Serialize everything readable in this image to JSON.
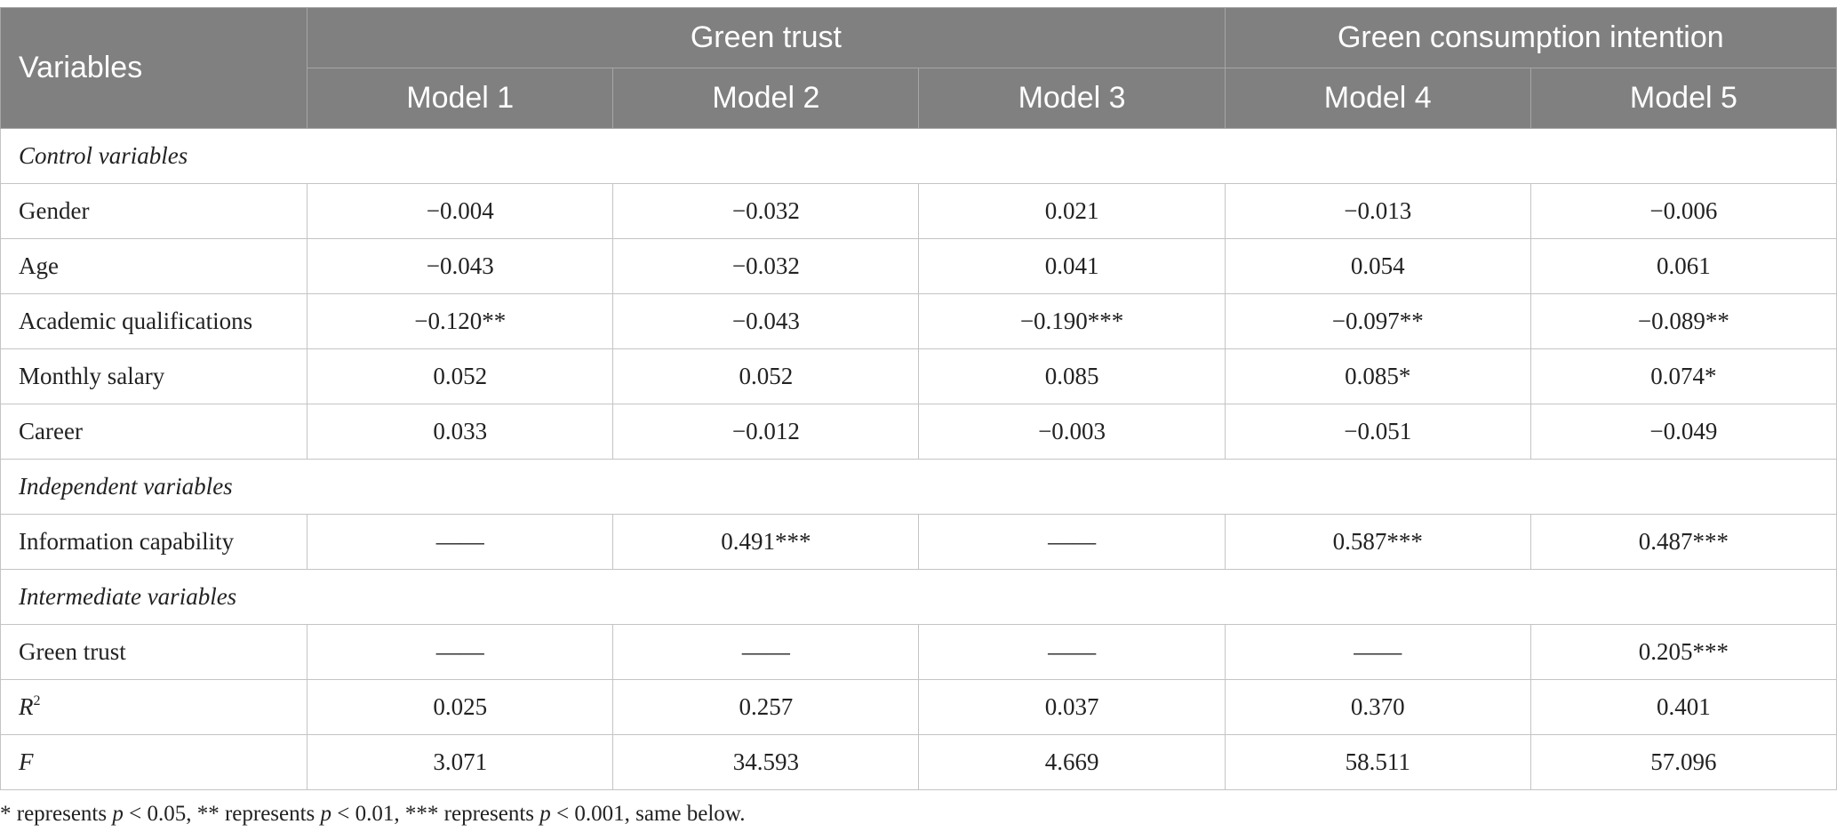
{
  "header": {
    "variables": "Variables",
    "group1": "Green trust",
    "group2": "Green consumption intention",
    "models": [
      "Model 1",
      "Model 2",
      "Model 3",
      "Model 4",
      "Model 5"
    ]
  },
  "rows": [
    {
      "type": "section",
      "label": "Control variables"
    },
    {
      "type": "data",
      "label": "Gender",
      "values": [
        "−0.004",
        "−0.032",
        "0.021",
        "−0.013",
        "−0.006"
      ]
    },
    {
      "type": "data",
      "label": "Age",
      "values": [
        "−0.043",
        "−0.032",
        "0.041",
        "0.054",
        "0.061"
      ]
    },
    {
      "type": "data",
      "label": "Academic qualifications",
      "values": [
        "−0.120**",
        "−0.043",
        "−0.190***",
        "−0.097**",
        "−0.089**"
      ]
    },
    {
      "type": "data",
      "label": "Monthly salary",
      "values": [
        "0.052",
        "0.052",
        "0.085",
        "0.085*",
        "0.074*"
      ]
    },
    {
      "type": "data",
      "label": "Career",
      "values": [
        "0.033",
        "−0.012",
        "−0.003",
        "−0.051",
        "−0.049"
      ]
    },
    {
      "type": "section",
      "label": "Independent variables"
    },
    {
      "type": "data",
      "label": "Information capability",
      "values": [
        "——",
        "0.491***",
        "——",
        "0.587***",
        "0.487***"
      ]
    },
    {
      "type": "section",
      "label": "Intermediate variables"
    },
    {
      "type": "data",
      "label": "Green trust",
      "values": [
        "——",
        "——",
        "——",
        "——",
        "0.205***"
      ]
    },
    {
      "type": "stat",
      "label": "R",
      "sup": "2",
      "values": [
        "0.025",
        "0.257",
        "0.037",
        "0.370",
        "0.401"
      ]
    },
    {
      "type": "stat",
      "label": "F",
      "values": [
        "3.071",
        "34.593",
        "4.669",
        "58.511",
        "57.096"
      ]
    }
  ],
  "note": {
    "parts": [
      {
        "t": "* represents ",
        "i": false
      },
      {
        "t": "p",
        "i": true
      },
      {
        "t": " < 0.05, ** represents ",
        "i": false
      },
      {
        "t": "p",
        "i": true
      },
      {
        "t": " < 0.01, *** represents ",
        "i": false
      },
      {
        "t": "p",
        "i": true
      },
      {
        "t": " < 0.001, same below.",
        "i": false
      }
    ]
  }
}
